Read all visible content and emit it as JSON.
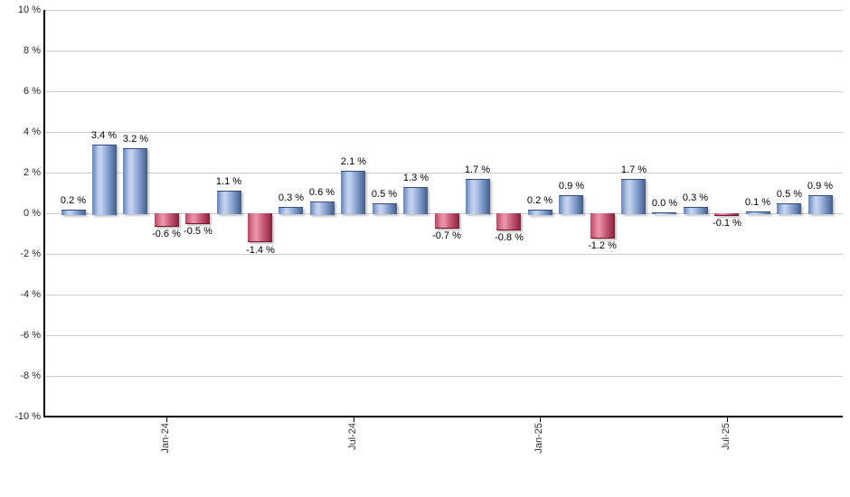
{
  "chart_data": {
    "type": "bar",
    "title": "",
    "xlabel": "",
    "ylabel": "",
    "ylim": [
      -10,
      10
    ],
    "grid": true,
    "legend": "none",
    "y_ticks": [
      {
        "value": 10,
        "label": "10 %"
      },
      {
        "value": 8,
        "label": "8 %"
      },
      {
        "value": 6,
        "label": "6 %"
      },
      {
        "value": 4,
        "label": "4 %"
      },
      {
        "value": 2,
        "label": "2 %"
      },
      {
        "value": 0,
        "label": "0 %"
      },
      {
        "value": -2,
        "label": "-2 %"
      },
      {
        "value": -4,
        "label": "-4 %"
      },
      {
        "value": -6,
        "label": "-6 %"
      },
      {
        "value": -8,
        "label": "-8 %"
      },
      {
        "value": -10,
        "label": "-10 %"
      }
    ],
    "values": [
      0.2,
      3.4,
      3.2,
      -0.6,
      -0.5,
      1.1,
      -1.4,
      0.3,
      0.6,
      2.1,
      0.5,
      1.3,
      -0.7,
      1.7,
      -0.8,
      0.2,
      0.9,
      -1.2,
      1.7,
      0.0,
      0.3,
      -0.1,
      0.1,
      0.5,
      0.9
    ],
    "value_labels": [
      "0.2 %",
      "3.4 %",
      "3.2 %",
      "-0.6 %",
      "-0.5 %",
      "1.1 %",
      "-1.4 %",
      "0.3 %",
      "0.6 %",
      "2.1 %",
      "0.5 %",
      "1.3 %",
      "-0.7 %",
      "1.7 %",
      "-0.8 %",
      "0.2 %",
      "0.9 %",
      "-1.2 %",
      "1.7 %",
      "0.0 %",
      "0.3 %",
      "-0.1 %",
      "0.1 %",
      "0.5 %",
      "0.9 %"
    ],
    "x_ticks": [
      {
        "label": "Jan-24",
        "bar_index": 3
      },
      {
        "label": "Jul-24",
        "bar_index": 9
      },
      {
        "label": "Jan-25",
        "bar_index": 15
      },
      {
        "label": "Jul-25",
        "bar_index": 21
      }
    ],
    "colors": {
      "positive_bar_main": "#6584bb",
      "positive_bar_highlight": "#c6d4f0",
      "positive_bar_dark": "#3e5c8e",
      "negative_bar_main": "#bb4663",
      "negative_bar_highlight": "#ec96ab",
      "negative_bar_dark": "#8c1e3c",
      "gridline": "#cccccc",
      "axis": "#000000",
      "value_label_text": "#000000",
      "tick_label_text": "#333333",
      "background": "#ffffff"
    }
  }
}
